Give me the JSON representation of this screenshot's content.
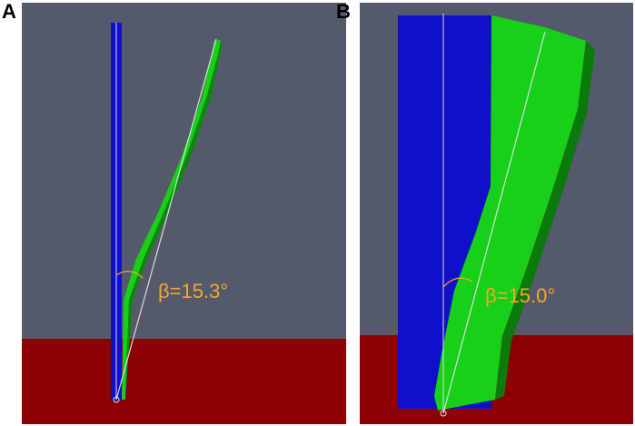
{
  "panels": [
    {
      "label": "A",
      "angle_label": "β=15.3°"
    },
    {
      "label": "B",
      "angle_label": "β=15.0°"
    }
  ]
}
